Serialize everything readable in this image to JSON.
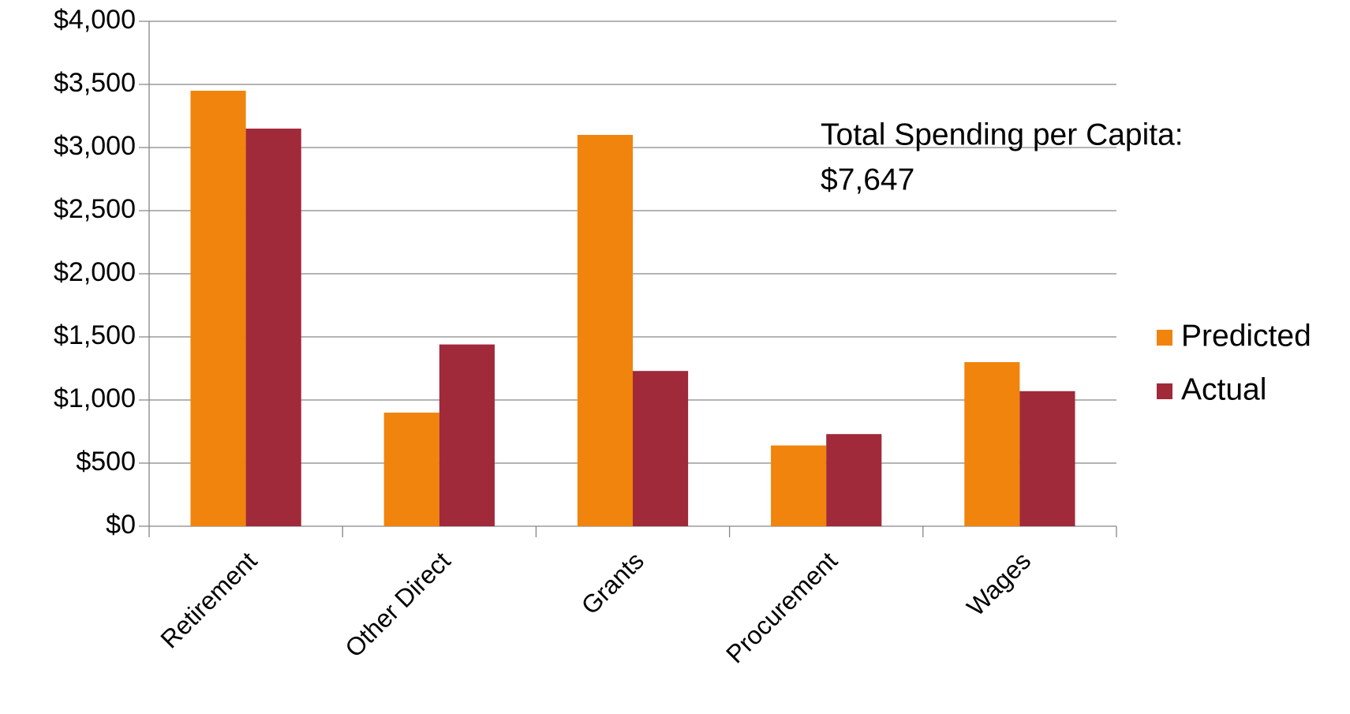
{
  "chart_data": {
    "type": "bar",
    "categories": [
      "Retirement",
      "Other Direct",
      "Grants",
      "Procurement",
      "Wages"
    ],
    "series": [
      {
        "name": "Predicted",
        "color": "#f0840c",
        "values": [
          3450,
          900,
          3100,
          640,
          1300
        ]
      },
      {
        "name": "Actual",
        "color": "#a0293a",
        "values": [
          3150,
          1440,
          1230,
          730,
          1070
        ]
      }
    ],
    "ylim": [
      0,
      4000
    ],
    "yticks": [
      {
        "value": 0,
        "label": "$0"
      },
      {
        "value": 500,
        "label": "$500"
      },
      {
        "value": 1000,
        "label": "$1,000"
      },
      {
        "value": 1500,
        "label": "$1,500"
      },
      {
        "value": 2000,
        "label": "$2,000"
      },
      {
        "value": 2500,
        "label": "$2,500"
      },
      {
        "value": 3000,
        "label": "$3,000"
      },
      {
        "value": 3500,
        "label": "$3,500"
      },
      {
        "value": 4000,
        "label": "$4,000"
      }
    ],
    "grid": true,
    "legend": "right",
    "annotation": [
      "Total Spending per Capita:",
      "$7,647"
    ]
  }
}
